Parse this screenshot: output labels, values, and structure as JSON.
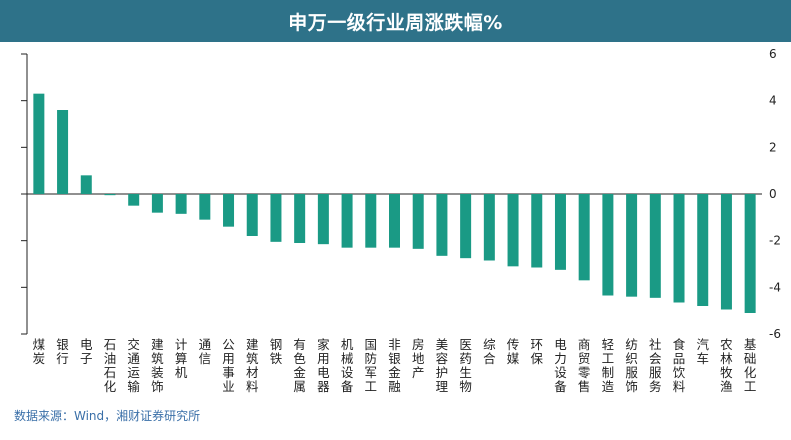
{
  "chart_data": {
    "type": "bar",
    "title": "申万一级行业周涨跌幅%",
    "categories": [
      "煤炭",
      "银行",
      "电子",
      "石油石化",
      "交通运输",
      "建筑装饰",
      "计算机",
      "通信",
      "公用事业",
      "建筑材料",
      "钢铁",
      "有色金属",
      "家用电器",
      "机械设备",
      "国防军工",
      "非银金融",
      "房地产",
      "美容护理",
      "医药生物",
      "综合",
      "传媒",
      "环保",
      "电力设备",
      "商贸零售",
      "轻工制造",
      "纺织服饰",
      "社会服务",
      "食品饮料",
      "汽车",
      "农林牧渔",
      "基础化工"
    ],
    "values": [
      4.3,
      3.6,
      0.8,
      -0.05,
      -0.5,
      -0.8,
      -0.85,
      -1.1,
      -1.4,
      -1.8,
      -2.05,
      -2.1,
      -2.15,
      -2.3,
      -2.3,
      -2.3,
      -2.35,
      -2.65,
      -2.75,
      -2.85,
      -3.1,
      -3.15,
      -3.25,
      -3.7,
      -4.35,
      -4.4,
      -4.45,
      -4.65,
      -4.8,
      -4.95,
      -5.1
    ],
    "ylim": [
      -6,
      6
    ],
    "yticks": [
      -6,
      -4,
      -2,
      0,
      2,
      4,
      6
    ],
    "ytick_labels": [
      "-6",
      "-4",
      "-2",
      "0",
      "2",
      "4",
      "6"
    ],
    "xlabel": "",
    "ylabel": "",
    "grid": false,
    "legend": "none"
  },
  "colors": {
    "bar": "#1a9a85",
    "title_bg": "#2e7289",
    "axis": "#222222",
    "source_text": "#3a6fa8"
  },
  "source_text": "数据来源：Wind，湘财证券研究所"
}
